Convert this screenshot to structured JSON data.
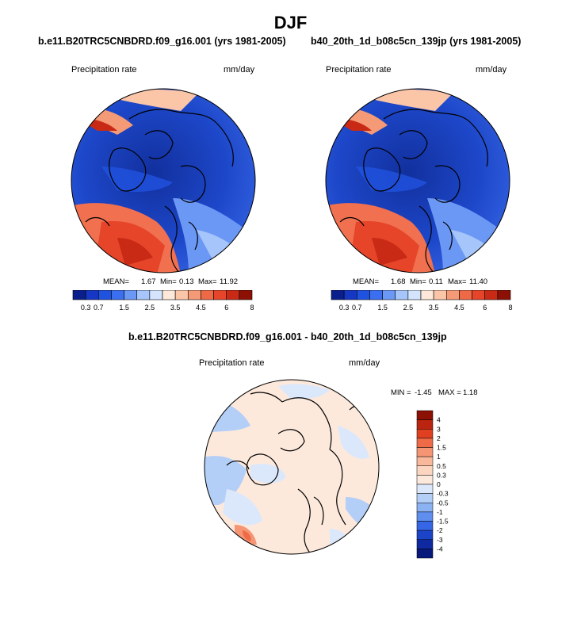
{
  "figure": {
    "title": "DJF",
    "colors": {
      "land_outline": "#000000",
      "text": "#000000"
    }
  },
  "chart_data": [
    {
      "type": "heatmap",
      "projection": "north polar stereographic",
      "title": "b.e11.B20TRC5CNBDRD.f09_g16.001 (yrs 1981-2005)",
      "variable": "Precipitation rate",
      "units": "mm/day",
      "stats": {
        "mean": "1.67",
        "min": "0.13",
        "max": "11.92"
      },
      "stats_labels": {
        "mean": "MEAN=",
        "min": "Min=",
        "max": "Max="
      },
      "levels": [
        "0.3",
        "0.7",
        "1",
        "1.5",
        "2",
        "2.5",
        "3",
        "3.5",
        "4",
        "4.5",
        "5",
        "6",
        "7",
        "8"
      ],
      "level_labels_shown": [
        "0.3",
        "0.7",
        "1.5",
        "2.5",
        "3.5",
        "4.5",
        "6",
        "8"
      ],
      "colorbar_colors": [
        "#0a1f8c",
        "#1637c4",
        "#2052e0",
        "#3b6ff0",
        "#6b98f5",
        "#a6c5fa",
        "#d3e4fc",
        "#fde8da",
        "#fbc5a8",
        "#f59a76",
        "#ee6a47",
        "#e6452a",
        "#c92a15",
        "#8c1004"
      ],
      "legend_placement": "bottom"
    },
    {
      "type": "heatmap",
      "projection": "north polar stereographic",
      "title": "b40_20th_1d_b08c5cn_139jp (yrs 1981-2005)",
      "variable": "Precipitation rate",
      "units": "mm/day",
      "stats": {
        "mean": "1.68",
        "min": "0.11",
        "max": "11.40"
      },
      "stats_labels": {
        "mean": "MEAN=",
        "min": "Min=",
        "max": "Max="
      },
      "levels": [
        "0.3",
        "0.7",
        "1",
        "1.5",
        "2",
        "2.5",
        "3",
        "3.5",
        "4",
        "4.5",
        "5",
        "6",
        "7",
        "8"
      ],
      "level_labels_shown": [
        "0.3",
        "0.7",
        "1.5",
        "2.5",
        "3.5",
        "4.5",
        "6",
        "8"
      ],
      "colorbar_colors": [
        "#0a1f8c",
        "#1637c4",
        "#2052e0",
        "#3b6ff0",
        "#6b98f5",
        "#a6c5fa",
        "#d3e4fc",
        "#fde8da",
        "#fbc5a8",
        "#f59a76",
        "#ee6a47",
        "#e6452a",
        "#c92a15",
        "#8c1004"
      ],
      "legend_placement": "bottom"
    },
    {
      "type": "heatmap",
      "projection": "north polar stereographic",
      "title": "b.e11.B20TRC5CNBDRD.f09_g16.001 - b40_20th_1d_b08c5cn_139jp",
      "variable": "Precipitation rate",
      "units": "mm/day",
      "stats": {
        "min": "-1.45",
        "max": "1.18"
      },
      "stats_labels": {
        "min": "MIN =",
        "max": "MAX ="
      },
      "levels": [
        "4",
        "3",
        "2",
        "1.5",
        "1",
        "0.5",
        "0.3",
        "0",
        "-0.3",
        "-0.5",
        "-1",
        "-1.5",
        "-2",
        "-3",
        "-4"
      ],
      "colorbar_colors": [
        "#8c1004",
        "#bb2410",
        "#e0401f",
        "#ef6a46",
        "#f59574",
        "#f9b79c",
        "#fcd5c1",
        "#fde9dc",
        "#dbe8fb",
        "#b3cff8",
        "#8bb2f3",
        "#5f8eee",
        "#3466e6",
        "#1b44c9",
        "#0f2aa0",
        "#07197a"
      ],
      "legend_placement": "right"
    }
  ]
}
